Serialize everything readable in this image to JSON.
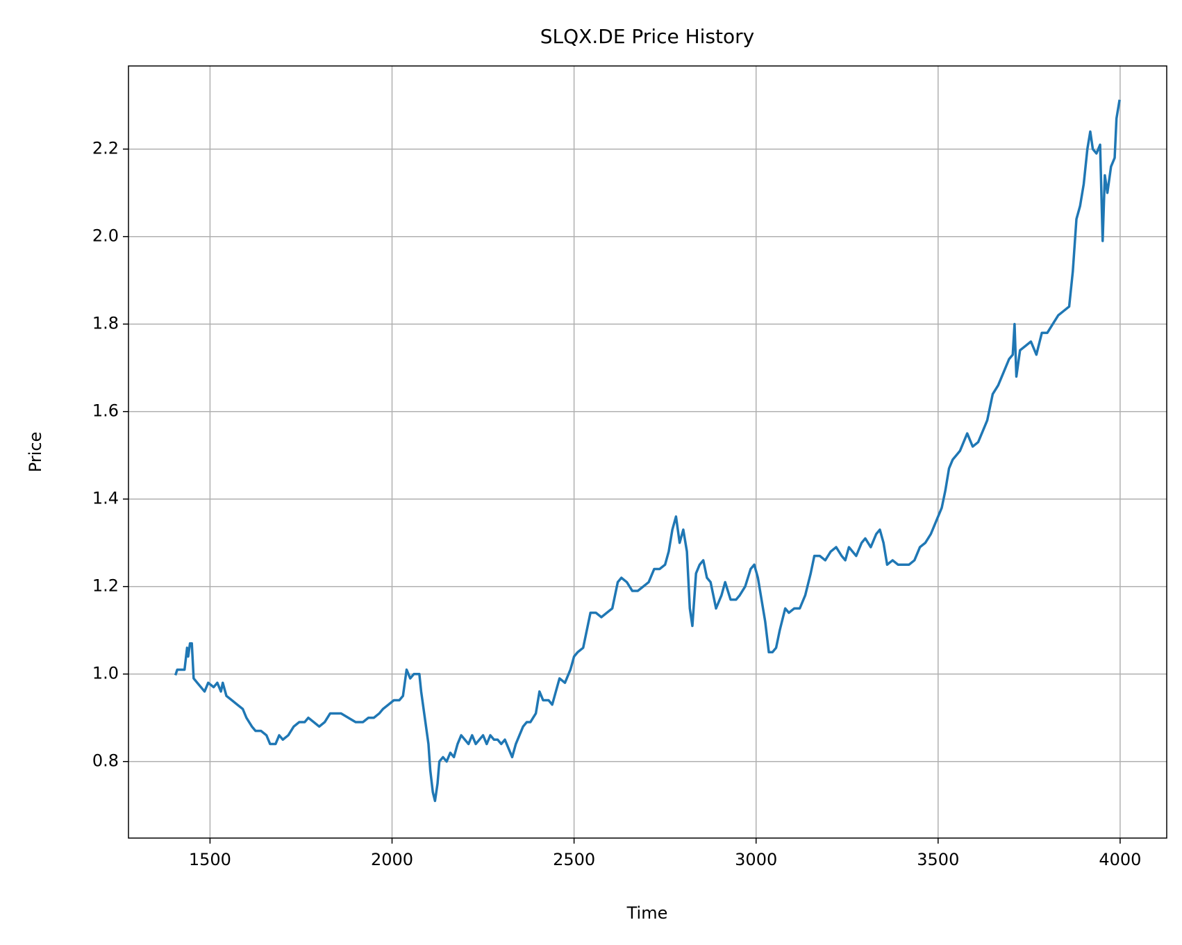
{
  "chart_data": {
    "type": "line",
    "title": "SLQX.DE Price History",
    "x_label": "Time",
    "y_label": "Price",
    "color": "#1f77b4",
    "grid": true,
    "xlim": [
      1276,
      4128
    ],
    "ylim": [
      0.625,
      2.39
    ],
    "xticks": [
      1500,
      2000,
      2500,
      3000,
      3500,
      4000
    ],
    "yticks": [
      0.8,
      {
        "value": 1,
        "label": "1.0"
      },
      1.2,
      1.4,
      1.6,
      1.8,
      {
        "value": 2,
        "label": "2.0"
      },
      2.2
    ],
    "x": [
      1406,
      1410,
      1420,
      1430,
      1437,
      1440,
      1445,
      1450,
      1455,
      1465,
      1475,
      1485,
      1495,
      1510,
      1520,
      1530,
      1535,
      1545,
      1560,
      1575,
      1590,
      1600,
      1615,
      1625,
      1640,
      1655,
      1665,
      1680,
      1690,
      1700,
      1715,
      1730,
      1745,
      1760,
      1770,
      1785,
      1800,
      1815,
      1830,
      1845,
      1860,
      1880,
      1900,
      1920,
      1935,
      1950,
      1965,
      1975,
      1990,
      2005,
      2020,
      2030,
      2040,
      2050,
      2060,
      2065,
      2075,
      2080,
      2090,
      2100,
      2105,
      2112,
      2118,
      2125,
      2130,
      2140,
      2150,
      2160,
      2170,
      2180,
      2190,
      2200,
      2210,
      2220,
      2230,
      2240,
      2250,
      2260,
      2270,
      2280,
      2290,
      2300,
      2310,
      2320,
      2330,
      2340,
      2350,
      2360,
      2370,
      2380,
      2395,
      2405,
      2415,
      2430,
      2440,
      2450,
      2460,
      2475,
      2490,
      2500,
      2510,
      2525,
      2535,
      2545,
      2560,
      2575,
      2590,
      2605,
      2620,
      2630,
      2645,
      2660,
      2675,
      2690,
      2705,
      2720,
      2735,
      2750,
      2760,
      2770,
      2780,
      2790,
      2800,
      2810,
      2818,
      2825,
      2835,
      2845,
      2855,
      2865,
      2875,
      2890,
      2905,
      2915,
      2930,
      2945,
      2955,
      2970,
      2985,
      2995,
      3005,
      3015,
      3025,
      3035,
      3045,
      3055,
      3065,
      3080,
      3090,
      3105,
      3120,
      3135,
      3150,
      3160,
      3175,
      3190,
      3205,
      3220,
      3235,
      3245,
      3255,
      3265,
      3275,
      3290,
      3300,
      3315,
      3330,
      3340,
      3350,
      3360,
      3375,
      3390,
      3405,
      3420,
      3435,
      3450,
      3465,
      3480,
      3495,
      3510,
      3520,
      3530,
      3540,
      3550,
      3560,
      3570,
      3580,
      3595,
      3610,
      3625,
      3635,
      3650,
      3665,
      3680,
      3695,
      3705,
      3710,
      3715,
      3725,
      3740,
      3755,
      3770,
      3785,
      3800,
      3815,
      3830,
      3845,
      3860,
      3870,
      3880,
      3890,
      3900,
      3910,
      3918,
      3925,
      3935,
      3945,
      3952,
      3958,
      3965,
      3975,
      3985,
      3990,
      3998
    ],
    "values": [
      1.0,
      1.01,
      1.01,
      1.01,
      1.06,
      1.04,
      1.07,
      1.07,
      0.99,
      0.98,
      0.97,
      0.96,
      0.98,
      0.97,
      0.98,
      0.96,
      0.98,
      0.95,
      0.94,
      0.93,
      0.92,
      0.9,
      0.88,
      0.87,
      0.87,
      0.86,
      0.84,
      0.84,
      0.86,
      0.85,
      0.86,
      0.88,
      0.89,
      0.89,
      0.9,
      0.89,
      0.88,
      0.89,
      0.91,
      0.91,
      0.91,
      0.9,
      0.89,
      0.89,
      0.9,
      0.9,
      0.91,
      0.92,
      0.93,
      0.94,
      0.94,
      0.95,
      1.01,
      0.99,
      1.0,
      1.0,
      1.0,
      0.96,
      0.9,
      0.84,
      0.78,
      0.73,
      0.71,
      0.75,
      0.8,
      0.81,
      0.8,
      0.82,
      0.81,
      0.84,
      0.86,
      0.85,
      0.84,
      0.86,
      0.84,
      0.85,
      0.86,
      0.84,
      0.86,
      0.85,
      0.85,
      0.84,
      0.85,
      0.83,
      0.81,
      0.84,
      0.86,
      0.88,
      0.89,
      0.89,
      0.91,
      0.96,
      0.94,
      0.94,
      0.93,
      0.96,
      0.99,
      0.98,
      1.01,
      1.04,
      1.05,
      1.06,
      1.1,
      1.14,
      1.14,
      1.13,
      1.14,
      1.15,
      1.21,
      1.22,
      1.21,
      1.19,
      1.19,
      1.2,
      1.21,
      1.24,
      1.24,
      1.25,
      1.28,
      1.33,
      1.36,
      1.3,
      1.33,
      1.28,
      1.15,
      1.11,
      1.23,
      1.25,
      1.26,
      1.22,
      1.21,
      1.15,
      1.18,
      1.21,
      1.17,
      1.17,
      1.18,
      1.2,
      1.24,
      1.25,
      1.22,
      1.17,
      1.12,
      1.05,
      1.05,
      1.06,
      1.1,
      1.15,
      1.14,
      1.15,
      1.15,
      1.18,
      1.23,
      1.27,
      1.27,
      1.26,
      1.28,
      1.29,
      1.27,
      1.26,
      1.29,
      1.28,
      1.27,
      1.3,
      1.31,
      1.29,
      1.32,
      1.33,
      1.3,
      1.25,
      1.26,
      1.25,
      1.25,
      1.25,
      1.26,
      1.29,
      1.3,
      1.32,
      1.35,
      1.38,
      1.42,
      1.47,
      1.49,
      1.5,
      1.51,
      1.53,
      1.55,
      1.52,
      1.53,
      1.56,
      1.58,
      1.64,
      1.66,
      1.69,
      1.72,
      1.73,
      1.8,
      1.68,
      1.74,
      1.75,
      1.76,
      1.73,
      1.78,
      1.78,
      1.8,
      1.82,
      1.83,
      1.84,
      1.92,
      2.04,
      2.07,
      2.12,
      2.2,
      2.24,
      2.2,
      2.19,
      2.21,
      1.99,
      2.14,
      2.1,
      2.16,
      2.18,
      2.27,
      2.31
    ]
  }
}
